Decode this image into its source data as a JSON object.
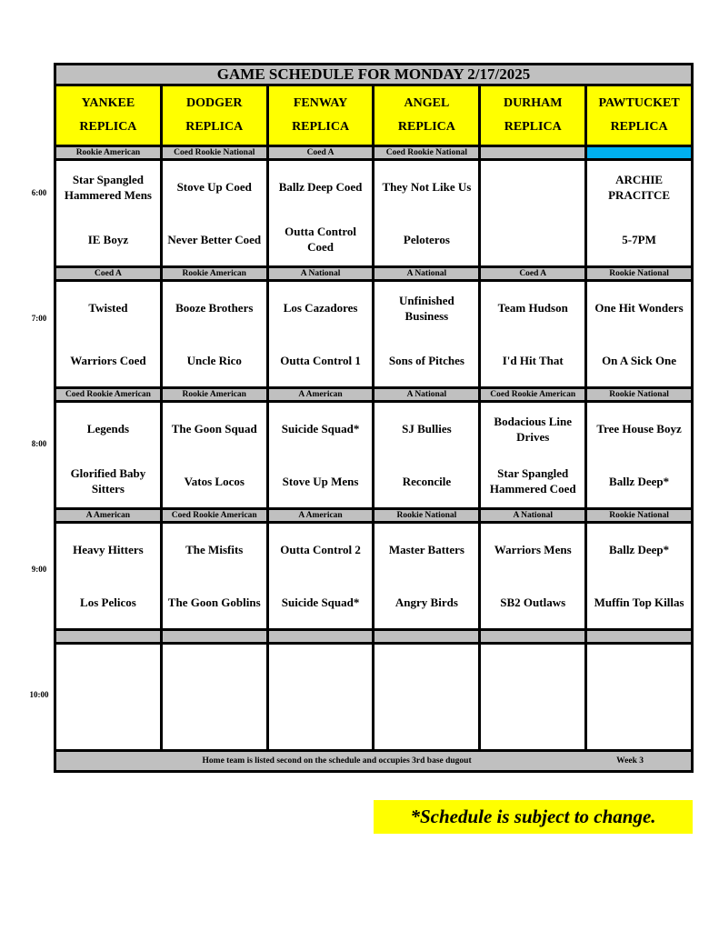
{
  "title": "GAME SCHEDULE FOR MONDAY 2/17/2025",
  "fields": [
    {
      "name": "YANKEE",
      "sub": "REPLICA"
    },
    {
      "name": "DODGER",
      "sub": "REPLICA"
    },
    {
      "name": "FENWAY",
      "sub": "REPLICA"
    },
    {
      "name": "ANGEL",
      "sub": "REPLICA"
    },
    {
      "name": "DURHAM",
      "sub": "REPLICA"
    },
    {
      "name": "PAWTUCKET",
      "sub": "REPLICA"
    }
  ],
  "colors": {
    "header": "#ffff00",
    "division": "#c0c0c0",
    "highlight": "#00b0f0"
  },
  "slots": [
    {
      "time": "6:00",
      "divisions": [
        "Rookie American",
        "Coed Rookie National",
        "Coed A",
        "Coed Rookie National",
        "",
        ""
      ],
      "highlight": [
        5
      ],
      "games": [
        [
          "Star Spangled Hammered Mens",
          "IE Boyz"
        ],
        [
          "Stove Up Coed",
          "Never Better Coed"
        ],
        [
          "Ballz Deep Coed",
          "Outta Control Coed"
        ],
        [
          "They Not Like Us",
          "Peloteros"
        ],
        [
          "",
          ""
        ],
        [
          "ARCHIE PRACITCE",
          "5-7PM"
        ]
      ]
    },
    {
      "time": "7:00",
      "divisions": [
        "Coed A",
        "Rookie American",
        "A National",
        "A National",
        "Coed A",
        "Rookie National"
      ],
      "highlight": [],
      "games": [
        [
          "Twisted",
          "Warriors Coed"
        ],
        [
          "Booze Brothers",
          "Uncle Rico"
        ],
        [
          "Los Cazadores",
          "Outta Control 1"
        ],
        [
          "Unfinished Business",
          "Sons of Pitches"
        ],
        [
          "Team Hudson",
          "I'd Hit That"
        ],
        [
          "One Hit Wonders",
          "On A Sick One"
        ]
      ]
    },
    {
      "time": "8:00",
      "divisions": [
        "Coed Rookie American",
        "Rookie American",
        "A American",
        "A National",
        "Coed Rookie American",
        "Rookie National"
      ],
      "highlight": [],
      "games": [
        [
          "Legends",
          "Glorified Baby Sitters"
        ],
        [
          "The Goon Squad",
          "Vatos Locos"
        ],
        [
          "Suicide Squad*",
          "Stove Up Mens"
        ],
        [
          "SJ Bullies",
          "Reconcile"
        ],
        [
          "Bodacious Line Drives",
          "Star Spangled Hammered Coed"
        ],
        [
          "Tree House Boyz",
          "Ballz Deep*"
        ]
      ]
    },
    {
      "time": "9:00",
      "divisions": [
        "A American",
        "Coed Rookie American",
        "A American",
        "Rookie National",
        "A National",
        "Rookie National"
      ],
      "highlight": [],
      "games": [
        [
          "Heavy Hitters",
          "Los Pelicos"
        ],
        [
          "The Misfits",
          "The Goon Goblins"
        ],
        [
          "Outta Control 2",
          "Suicide Squad*"
        ],
        [
          "Master Batters",
          "Angry Birds"
        ],
        [
          "Warriors Mens",
          "SB2 Outlaws"
        ],
        [
          "Ballz Deep*",
          "Muffin Top Killas"
        ]
      ]
    },
    {
      "time": "10:00",
      "divisions": [
        "",
        "",
        "",
        "",
        "",
        ""
      ],
      "highlight": [],
      "games": [
        [
          "",
          ""
        ],
        [
          "",
          ""
        ],
        [
          "",
          ""
        ],
        [
          "",
          ""
        ],
        [
          "",
          ""
        ],
        [
          "",
          ""
        ]
      ]
    }
  ],
  "footer": {
    "note": "Home team is listed second on the schedule and occupies 3rd base dugout",
    "week": "Week 3"
  },
  "banner": "*Schedule is subject to change."
}
